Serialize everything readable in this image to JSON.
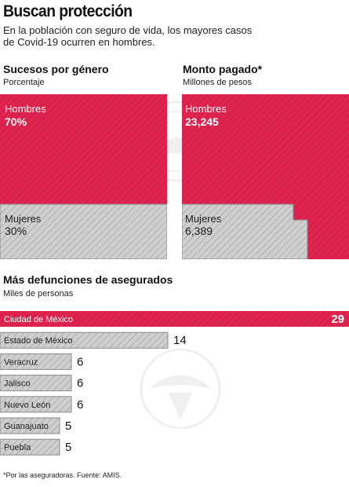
{
  "title": "Buscan protección",
  "subtitle": "En la población con seguro de vida, los mayores casos de Covid-19 ocurren en hombres.",
  "colors": {
    "hombres": "#e0234f",
    "mujeres": "#c9c9c9",
    "stroke": "#8a8a8a"
  },
  "chart_data": [
    {
      "type": "area",
      "title": "Sucesos por género",
      "subtitle": "Porcentaje",
      "series": [
        {
          "name": "Hombres",
          "value": 70,
          "label": "70%"
        },
        {
          "name": "Mujeres",
          "value": 30,
          "label": "30%"
        }
      ]
    },
    {
      "type": "area",
      "title": "Monto pagado*",
      "subtitle": "Millones de pesos",
      "series": [
        {
          "name": "Hombres",
          "value": 23245,
          "label": "23,245"
        },
        {
          "name": "Mujeres",
          "value": 6389,
          "label": "6,389"
        }
      ]
    },
    {
      "type": "bar",
      "orientation": "horizontal",
      "title": "Más defunciones de asegurados",
      "subtitle": "Miles de personas",
      "categories": [
        "Ciudad de México",
        "Estado de México",
        "Veracruz",
        "Jalisco",
        "Nuevo León",
        "Guanajuato",
        "Puebla"
      ],
      "values": [
        29,
        14,
        6,
        6,
        6,
        5,
        5
      ],
      "xlim": [
        0,
        29
      ]
    }
  ],
  "footnote": "*Por las aseguradoras. Fuente: AMIS."
}
